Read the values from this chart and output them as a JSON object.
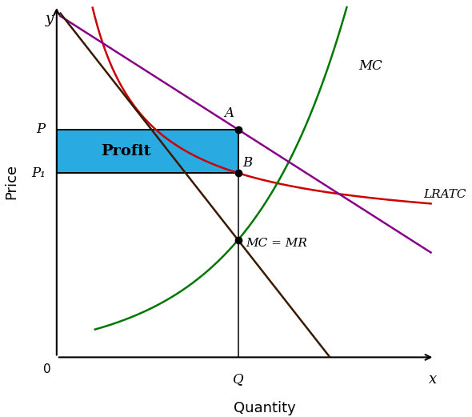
{
  "xlabel": "Quantity",
  "ylabel": "Price",
  "x_axis_label": "x",
  "y_axis_label": "y",
  "origin_label": "0",
  "Q_label": "Q",
  "P_label": "P",
  "P1_label": "P₁",
  "A_label": "A",
  "B_label": "B",
  "MC_MR_label": "MC = MR",
  "MC_curve_label": "MC",
  "LRATC_label": "LRATC",
  "profit_label": "Profit",
  "profit_color": "#29ABE2",
  "profit_alpha": 1.0,
  "Q_val": 4.8,
  "P_val": 6.8,
  "P1_val": 5.5,
  "MC_MR_intersection_y": 3.5,
  "xlim": [
    0,
    10
  ],
  "ylim": [
    0,
    10.5
  ],
  "bg_color": "#ffffff",
  "lratc_color": "#cc0000",
  "mc_color": "#007700",
  "demand_color": "#880088",
  "mr_color": "#3a1a00"
}
